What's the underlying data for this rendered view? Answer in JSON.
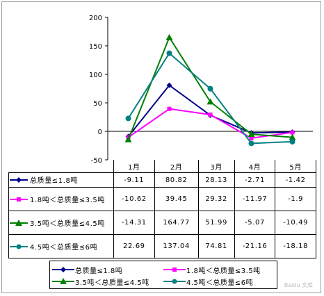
{
  "chart_data": {
    "type": "line",
    "categories": [
      "1月",
      "2月",
      "3月",
      "4月",
      "5月"
    ],
    "ylim": [
      -50,
      200
    ],
    "yticks": [
      -50,
      0,
      50,
      100,
      150,
      200
    ],
    "grid": false,
    "legend_position": "bottom",
    "series": [
      {
        "name": "总质量≤1.8吨",
        "table_label": "总质量≤1.8吨",
        "color": "#00008b",
        "marker": "diamond",
        "values": [
          -9.11,
          80.82,
          28.13,
          -2.71,
          -1.42
        ],
        "labels": [
          "-9.11",
          "80.82",
          "28.13",
          "-2.71",
          "-1.42"
        ]
      },
      {
        "name": "1.8吨＜总质量≤3.5吨",
        "table_label": "1.8吨＜总质量≤3.5吨",
        "color": "#ff00ff",
        "marker": "square",
        "values": [
          -10.62,
          39.45,
          29.32,
          -11.97,
          -1.9
        ],
        "labels": [
          "-10.62",
          "39.45",
          "29.32",
          "-11.97",
          "-1.9"
        ]
      },
      {
        "name": "3.5吨＜总质量≤4.5吨",
        "table_label": "3.5吨＜总质量≤4.5吨",
        "color": "#008000",
        "marker": "triangle",
        "values": [
          -14.31,
          164.77,
          51.99,
          -5.07,
          -10.49
        ],
        "labels": [
          "-14.31",
          "164.77",
          "51.99",
          "-5.07",
          "-10.49"
        ]
      },
      {
        "name": "4.5吨＜总质量≤6吨",
        "table_label": "4.5吨＜总质量≤6吨",
        "color": "#008080",
        "marker": "circle",
        "values": [
          22.69,
          137.04,
          74.81,
          -21.16,
          -18.18
        ],
        "labels": [
          "22.69",
          "137.04",
          "74.81",
          "-21.16",
          "-18.18"
        ]
      }
    ]
  },
  "watermark": "Baidu 文库"
}
